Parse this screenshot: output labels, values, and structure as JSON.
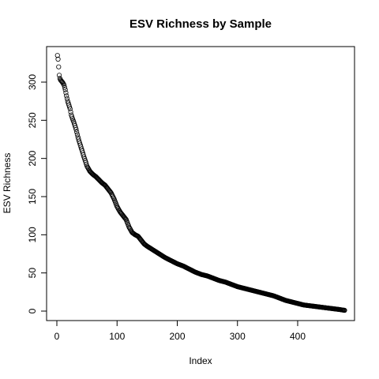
{
  "chart_data": {
    "type": "scatter",
    "title": "ESV Richness by Sample",
    "xlabel": "Index",
    "ylabel": "ESV Richness",
    "xlim": [
      1,
      478
    ],
    "ylim": [
      0,
      335
    ],
    "x_ticks": [
      "0",
      "100",
      "200",
      "300",
      "400"
    ],
    "y_ticks": [
      "0",
      "50",
      "100",
      "150",
      "200",
      "250",
      "300"
    ],
    "grid": false,
    "legend": "none",
    "marker": "open-circle",
    "point_color": "#000000",
    "n_points": 478,
    "profile": [
      [
        1,
        335
      ],
      [
        2,
        330
      ],
      [
        3,
        320
      ],
      [
        4,
        309
      ],
      [
        5,
        305
      ],
      [
        6,
        303
      ],
      [
        8,
        301
      ],
      [
        10,
        299
      ],
      [
        12,
        296
      ],
      [
        14,
        290
      ],
      [
        16,
        282
      ],
      [
        18,
        275
      ],
      [
        20,
        270
      ],
      [
        22,
        265
      ],
      [
        24,
        257
      ],
      [
        26,
        252
      ],
      [
        28,
        248
      ],
      [
        30,
        243
      ],
      [
        32,
        238
      ],
      [
        35,
        228
      ],
      [
        38,
        220
      ],
      [
        40,
        215
      ],
      [
        42,
        210
      ],
      [
        45,
        202
      ],
      [
        48,
        195
      ],
      [
        50,
        190
      ],
      [
        55,
        183
      ],
      [
        60,
        179
      ],
      [
        65,
        176
      ],
      [
        70,
        172
      ],
      [
        75,
        168
      ],
      [
        80,
        165
      ],
      [
        85,
        160
      ],
      [
        90,
        155
      ],
      [
        95,
        147
      ],
      [
        100,
        137
      ],
      [
        105,
        130
      ],
      [
        110,
        125
      ],
      [
        115,
        120
      ],
      [
        120,
        110
      ],
      [
        125,
        103
      ],
      [
        130,
        100
      ],
      [
        135,
        98
      ],
      [
        140,
        93
      ],
      [
        145,
        88
      ],
      [
        150,
        85
      ],
      [
        160,
        80
      ],
      [
        170,
        75
      ],
      [
        180,
        70
      ],
      [
        190,
        66
      ],
      [
        200,
        62
      ],
      [
        210,
        59
      ],
      [
        220,
        55
      ],
      [
        230,
        51
      ],
      [
        240,
        48
      ],
      [
        250,
        46
      ],
      [
        260,
        43
      ],
      [
        270,
        40
      ],
      [
        280,
        38
      ],
      [
        290,
        35
      ],
      [
        300,
        32
      ],
      [
        310,
        30
      ],
      [
        320,
        28
      ],
      [
        330,
        26
      ],
      [
        340,
        24
      ],
      [
        350,
        22
      ],
      [
        360,
        20
      ],
      [
        370,
        17
      ],
      [
        380,
        14
      ],
      [
        390,
        12
      ],
      [
        400,
        10
      ],
      [
        410,
        8
      ],
      [
        420,
        7
      ],
      [
        430,
        6
      ],
      [
        440,
        5
      ],
      [
        450,
        4
      ],
      [
        460,
        3
      ],
      [
        470,
        2
      ],
      [
        478,
        1
      ]
    ]
  }
}
